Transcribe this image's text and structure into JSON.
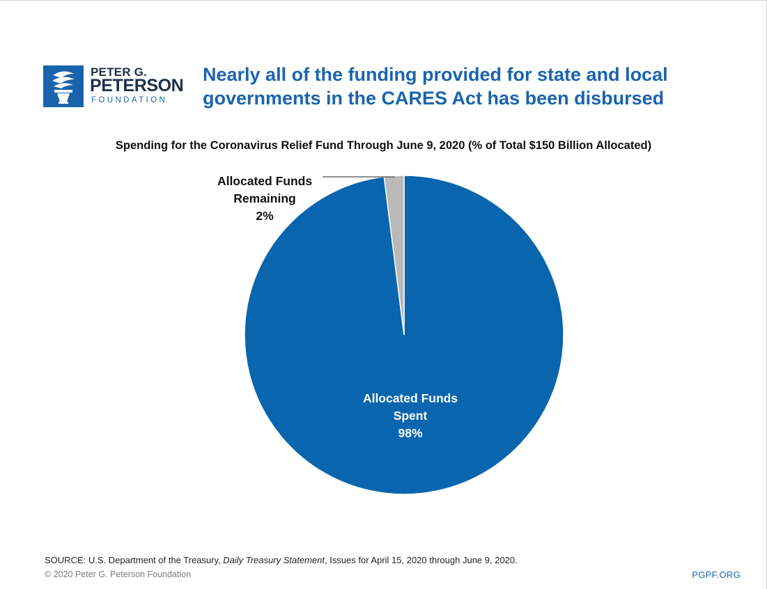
{
  "logo": {
    "line1": "PETER G.",
    "line2": "PETERSON",
    "line3": "FOUNDATION",
    "icon": "torch-icon"
  },
  "title_line1": "Nearly all of the funding provided for state and local",
  "title_line2": "governments in the CARES Act has been disbursed",
  "chart_data": {
    "type": "pie",
    "title": "Spending for the Coronavirus Relief Fund Through June 9, 2020 (% of Total $150 Billion Allocated)",
    "slices": [
      {
        "label_lines": [
          "Allocated Funds",
          "Spent",
          "98%"
        ],
        "value": 98,
        "color": "#0865ae",
        "label_color": "#ffffff"
      },
      {
        "label_lines": [
          "Allocated Funds",
          "Remaining",
          "2%"
        ],
        "value": 2,
        "color": "#b9b9b9",
        "label_color": "#111111"
      }
    ]
  },
  "source": {
    "prefix": "SOURCE: U.S. Department of the Treasury, ",
    "italic": "Daily Treasury Statement",
    "suffix": ", Issues for April 15, 2020 through June 9, 2020."
  },
  "copyright": "© 2020 Peter G. Peterson Foundation",
  "site": "PGPF.ORG"
}
